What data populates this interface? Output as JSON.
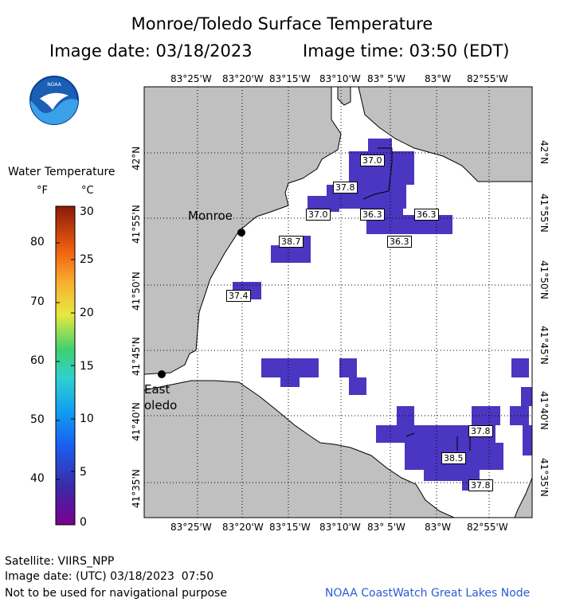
{
  "header": {
    "title": "Monroe/Toledo Surface Temperature",
    "image_date": "Image date: 03/18/2023",
    "image_time": "Image time: 03:50 (EDT)"
  },
  "logo": {
    "text": "NOAA"
  },
  "legend": {
    "title": "Water Temperature",
    "unit_f": "°F",
    "unit_c": "°C",
    "f_ticks": [
      "80",
      "70",
      "60",
      "50",
      "40"
    ],
    "c_ticks": [
      "30",
      "25",
      "20",
      "15",
      "10",
      "5",
      "0"
    ]
  },
  "map": {
    "lon_ticks": [
      "83°25'W",
      "83°20'W",
      "83°15'W",
      "83°10'W",
      "83° 5'W",
      "83°W",
      "82°55'W"
    ],
    "lat_ticks": [
      "42°N",
      "41°55'N",
      "41°50'N",
      "41°45'N",
      "41°40'N",
      "41°35'N"
    ],
    "places": {
      "monroe": "Monroe",
      "east": "East",
      "toledo": "oledo"
    },
    "temp_labels": [
      "37.0",
      "37.8",
      "37.0",
      "36.3",
      "36.3",
      "36.3",
      "38.7",
      "37.4",
      "37.8",
      "38.5",
      "37.8"
    ],
    "colors": {
      "land": "#c0c0c0",
      "water": "#ffffff",
      "warm_pixel": "#4040c8",
      "cool_pixel": "#5a2ab0",
      "grid": "#000000"
    }
  },
  "footer": {
    "satellite": "Satellite: VIIRS_NPP",
    "utc_date": "Image date: (UTC) 03/18/2023  07:50",
    "disclaimer": "Not to be used for navigational purpose",
    "credit": "NOAA CoastWatch Great Lakes Node"
  }
}
